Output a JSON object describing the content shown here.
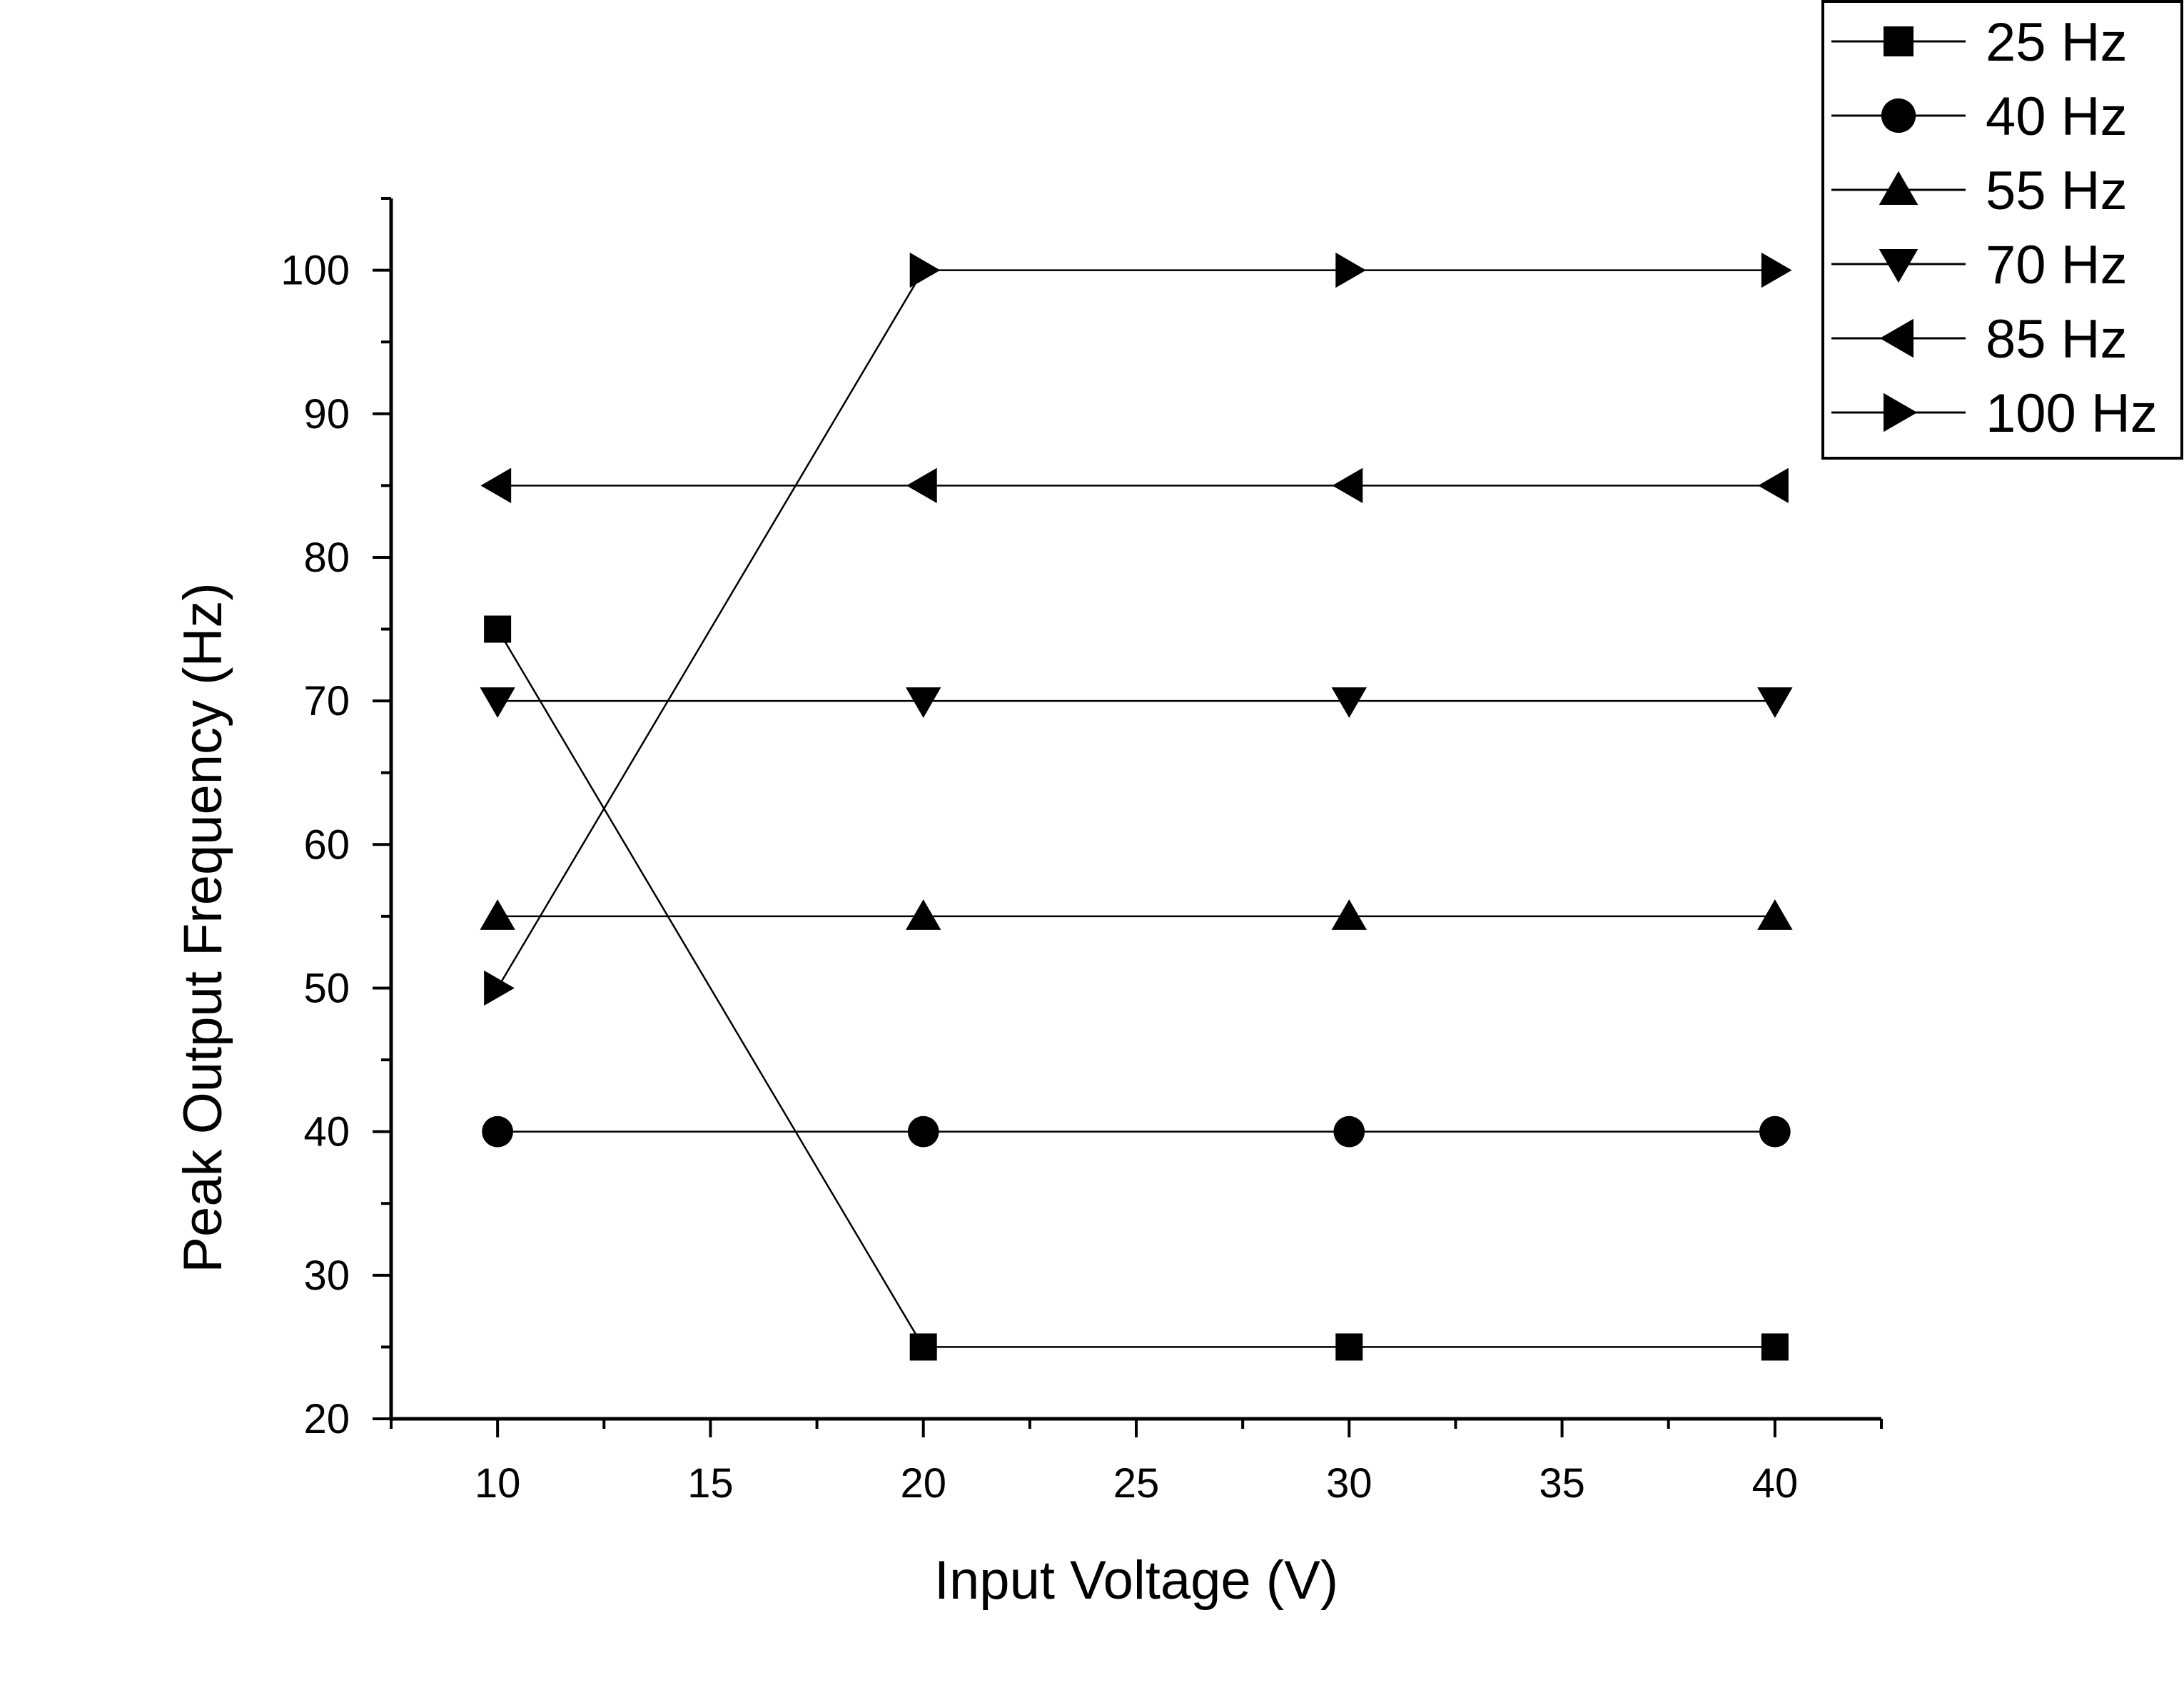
{
  "chart_data": {
    "type": "line",
    "title": "",
    "xlabel": "Input Voltage (V)",
    "ylabel": "Peak Output Frequency (Hz)",
    "xlim": [
      7.5,
      42.5
    ],
    "ylim": [
      20,
      105
    ],
    "x_ticks": [
      10,
      15,
      20,
      25,
      30,
      35,
      40
    ],
    "y_ticks": [
      20,
      30,
      40,
      50,
      60,
      70,
      80,
      90,
      100
    ],
    "grid": false,
    "legend_position": "top-right",
    "x": [
      10,
      20,
      30,
      40
    ],
    "series": [
      {
        "name": "25 Hz",
        "marker": "square",
        "values": [
          75,
          25,
          25,
          25
        ]
      },
      {
        "name": "40 Hz",
        "marker": "circle",
        "values": [
          40,
          40,
          40,
          40
        ]
      },
      {
        "name": "55 Hz",
        "marker": "triangle-up",
        "values": [
          55,
          55,
          55,
          55
        ]
      },
      {
        "name": "70 Hz",
        "marker": "triangle-down",
        "values": [
          70,
          70,
          70,
          70
        ]
      },
      {
        "name": "85 Hz",
        "marker": "triangle-left",
        "values": [
          85,
          85,
          85,
          85
        ]
      },
      {
        "name": "100 Hz",
        "marker": "triangle-right",
        "values": [
          50,
          100,
          100,
          100
        ]
      }
    ],
    "line_color": "#000000",
    "marker_color": "#000000"
  }
}
